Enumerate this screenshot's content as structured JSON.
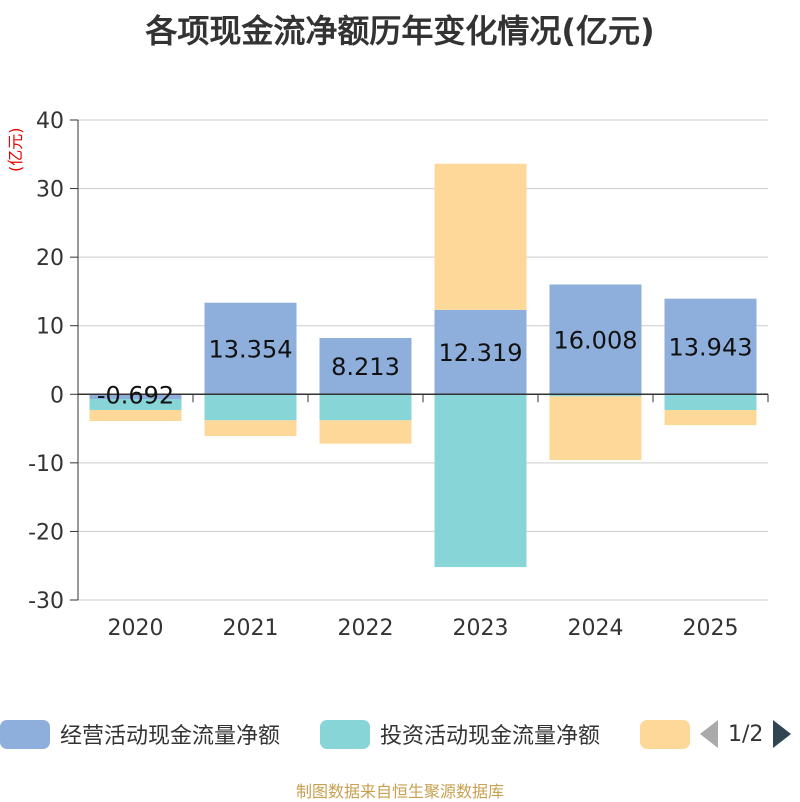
{
  "chart_data": {
    "type": "bar",
    "title": "各项现金流净额历年变化情况(亿元)",
    "ylabel": "(亿元)",
    "categories": [
      "2020",
      "2021",
      "2022",
      "2023",
      "2024",
      "2025"
    ],
    "ylim": [
      -30,
      40
    ],
    "yticks": [
      -30,
      -20,
      -10,
      0,
      10,
      20,
      30,
      40
    ],
    "stacked": true,
    "series": [
      {
        "name": "经营活动现金流量净额",
        "color": "#8eaedb",
        "values": [
          -0.692,
          13.354,
          8.213,
          12.319,
          16.008,
          13.943
        ],
        "data_labels": [
          "-0.692",
          "13.354",
          "8.213",
          "12.319",
          "16.008",
          "13.943"
        ]
      },
      {
        "name": "投资活动现金流量净额",
        "color": "#88d5d8",
        "values": [
          -1.6,
          -3.8,
          -3.8,
          -25.2,
          -0.3,
          -2.3
        ]
      },
      {
        "name": "",
        "color": "#fed898",
        "values": [
          -1.6,
          -2.3,
          -3.4,
          21.3,
          -9.3,
          -2.2
        ]
      }
    ]
  },
  "legend": {
    "items": [
      "经营活动现金流量净额",
      "投资活动现金流量净额",
      ""
    ],
    "page_text": "1/2"
  },
  "source": "制图数据来自恒生聚源数据库"
}
